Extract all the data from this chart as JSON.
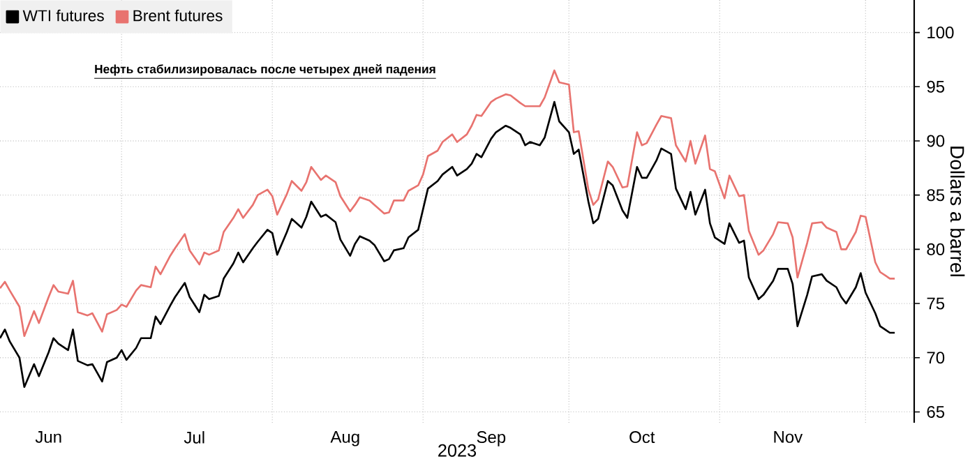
{
  "chart_data": {
    "type": "line",
    "title": "Нефть стабилизировалась после четырех дней падения",
    "xlabel": "2023",
    "ylabel": "Dollars a barrel",
    "x": [
      "2023-06-06",
      "2023-06-07",
      "2023-06-08",
      "2023-06-10",
      "2023-06-11",
      "2023-06-13",
      "2023-06-14",
      "2023-06-16",
      "2023-06-17",
      "2023-06-18",
      "2023-06-20",
      "2023-06-21",
      "2023-06-22",
      "2023-06-24",
      "2023-06-25",
      "2023-06-27",
      "2023-06-28",
      "2023-06-30",
      "2023-07-01",
      "2023-07-02",
      "2023-07-04",
      "2023-07-05",
      "2023-07-07",
      "2023-07-08",
      "2023-07-09",
      "2023-07-11",
      "2023-07-12",
      "2023-07-14",
      "2023-07-15",
      "2023-07-17",
      "2023-07-18",
      "2023-07-19",
      "2023-07-21",
      "2023-07-22",
      "2023-07-24",
      "2023-07-25",
      "2023-07-26",
      "2023-07-28",
      "2023-07-29",
      "2023-07-31",
      "2023-08-01",
      "2023-08-02",
      "2023-08-04",
      "2023-08-05",
      "2023-08-07",
      "2023-08-08",
      "2023-08-09",
      "2023-08-11",
      "2023-08-12",
      "2023-08-14",
      "2023-08-15",
      "2023-08-17",
      "2023-08-18",
      "2023-08-19",
      "2023-08-21",
      "2023-08-22",
      "2023-08-24",
      "2023-08-25",
      "2023-08-26",
      "2023-08-28",
      "2023-08-29",
      "2023-08-31",
      "2023-09-01",
      "2023-09-02",
      "2023-09-04",
      "2023-09-05",
      "2023-09-07",
      "2023-09-08",
      "2023-09-10",
      "2023-09-11",
      "2023-09-12",
      "2023-09-13",
      "2023-09-15",
      "2023-09-16",
      "2023-09-18",
      "2023-09-19",
      "2023-09-21",
      "2023-09-22",
      "2023-09-23",
      "2023-09-25",
      "2023-09-26",
      "2023-09-28",
      "2023-09-29",
      "2023-10-01",
      "2023-10-02",
      "2023-10-03",
      "2023-10-05",
      "2023-10-06",
      "2023-10-07",
      "2023-10-09",
      "2023-10-10",
      "2023-10-12",
      "2023-10-13",
      "2023-10-15",
      "2023-10-16",
      "2023-10-17",
      "2023-10-19",
      "2023-10-20",
      "2023-10-22",
      "2023-10-23",
      "2023-10-25",
      "2023-10-26",
      "2023-10-27",
      "2023-10-29",
      "2023-10-30",
      "2023-10-31",
      "2023-11-02",
      "2023-11-03",
      "2023-11-05",
      "2023-11-06",
      "2023-11-07",
      "2023-11-09",
      "2023-11-10",
      "2023-11-12",
      "2023-11-13",
      "2023-11-15",
      "2023-11-16",
      "2023-11-17",
      "2023-11-19",
      "2023-11-20",
      "2023-11-22",
      "2023-11-23",
      "2023-11-25",
      "2023-11-26",
      "2023-11-27",
      "2023-11-29",
      "2023-11-30",
      "2023-12-01",
      "2023-12-03",
      "2023-12-04",
      "2023-12-06",
      "2023-12-07"
    ],
    "series": [
      {
        "name": "WTI futures",
        "color": "#000000",
        "values": [
          71.8,
          72.6,
          71.5,
          70.0,
          67.3,
          69.4,
          68.3,
          70.5,
          71.8,
          71.3,
          70.7,
          72.6,
          69.7,
          69.3,
          69.4,
          67.8,
          69.6,
          70.0,
          70.7,
          69.8,
          70.9,
          71.8,
          71.8,
          73.8,
          73.1,
          74.8,
          75.6,
          76.9,
          75.6,
          74.2,
          75.8,
          75.4,
          75.7,
          77.3,
          78.7,
          79.7,
          78.8,
          80.1,
          80.7,
          81.8,
          81.5,
          79.5,
          81.6,
          82.8,
          82.0,
          83.0,
          84.4,
          83.0,
          83.2,
          82.5,
          80.9,
          79.4,
          80.5,
          81.2,
          80.8,
          80.4,
          78.9,
          79.1,
          79.9,
          80.1,
          81.1,
          81.8,
          83.7,
          85.6,
          86.3,
          86.9,
          87.6,
          86.8,
          87.4,
          87.9,
          88.8,
          88.5,
          90.2,
          90.8,
          91.4,
          91.2,
          90.6,
          89.6,
          89.9,
          89.6,
          90.3,
          93.6,
          91.8,
          90.8,
          88.8,
          89.2,
          84.4,
          82.4,
          82.8,
          86.3,
          85.9,
          83.6,
          82.9,
          87.6,
          86.6,
          86.6,
          88.2,
          89.3,
          88.8,
          85.6,
          83.7,
          85.3,
          83.2,
          85.5,
          82.4,
          81.1,
          80.5,
          82.4,
          80.6,
          80.8,
          77.4,
          75.4,
          75.8,
          77.1,
          78.2,
          78.2,
          76.8,
          72.9,
          75.8,
          77.5,
          77.7,
          77.1,
          76.5,
          75.6,
          75.0,
          76.5,
          77.8,
          76.0,
          74.1,
          72.9,
          72.3,
          72.3
        ]
      },
      {
        "name": "Brent futures",
        "color": "#e8736f",
        "values": [
          76.4,
          77.0,
          76.2,
          74.7,
          72.0,
          74.3,
          73.2,
          75.6,
          76.7,
          76.1,
          75.9,
          77.1,
          74.2,
          73.9,
          74.1,
          72.4,
          74.0,
          74.4,
          74.9,
          74.7,
          76.2,
          76.7,
          76.5,
          78.4,
          77.7,
          79.4,
          80.1,
          81.4,
          79.9,
          78.6,
          79.7,
          79.5,
          79.9,
          81.6,
          82.9,
          83.7,
          82.9,
          84.1,
          85.0,
          85.5,
          84.9,
          83.2,
          85.1,
          86.3,
          85.4,
          86.2,
          87.6,
          86.4,
          86.8,
          86.2,
          84.9,
          83.5,
          84.1,
          84.8,
          84.5,
          84.1,
          83.3,
          83.4,
          84.5,
          84.5,
          85.4,
          85.9,
          86.9,
          88.6,
          89.1,
          89.9,
          90.6,
          89.9,
          90.6,
          91.4,
          92.4,
          92.3,
          93.6,
          93.9,
          94.3,
          94.2,
          93.5,
          93.2,
          93.2,
          93.2,
          94.0,
          96.5,
          95.4,
          95.2,
          90.8,
          90.9,
          85.5,
          84.1,
          84.6,
          88.1,
          87.6,
          85.7,
          85.8,
          90.8,
          89.6,
          89.8,
          91.5,
          92.3,
          92.1,
          89.6,
          88.1,
          90.0,
          87.9,
          90.5,
          87.4,
          87.2,
          84.7,
          86.8,
          84.9,
          85.0,
          81.7,
          79.5,
          79.9,
          81.4,
          82.5,
          82.4,
          81.1,
          77.4,
          80.6,
          82.4,
          82.5,
          82.0,
          81.6,
          80.0,
          80.0,
          81.6,
          83.1,
          83.0,
          78.8,
          77.9,
          77.3,
          77.3
        ]
      }
    ],
    "xlim": [
      "2023-06-06",
      "2023-12-11"
    ],
    "xticks": [
      {
        "value": "2023-06-16",
        "label": "Jun"
      },
      {
        "value": "2023-07-16",
        "label": "Jul"
      },
      {
        "value": "2023-08-16",
        "label": "Aug"
      },
      {
        "value": "2023-09-15",
        "label": "Sep"
      },
      {
        "value": "2023-10-16",
        "label": "Oct"
      },
      {
        "value": "2023-11-15",
        "label": "Nov"
      },
      {
        "value": "2023-07-01",
        "label": null
      },
      {
        "value": "2023-08-01",
        "label": null
      },
      {
        "value": "2023-09-01",
        "label": null
      },
      {
        "value": "2023-10-01",
        "label": null
      },
      {
        "value": "2023-11-01",
        "label": null
      },
      {
        "value": "2023-12-01",
        "label": null
      }
    ],
    "ylim": [
      64,
      103
    ],
    "yticks": [
      65,
      70,
      75,
      80,
      85,
      90,
      95,
      100
    ],
    "grid": true,
    "legend": "top left"
  }
}
